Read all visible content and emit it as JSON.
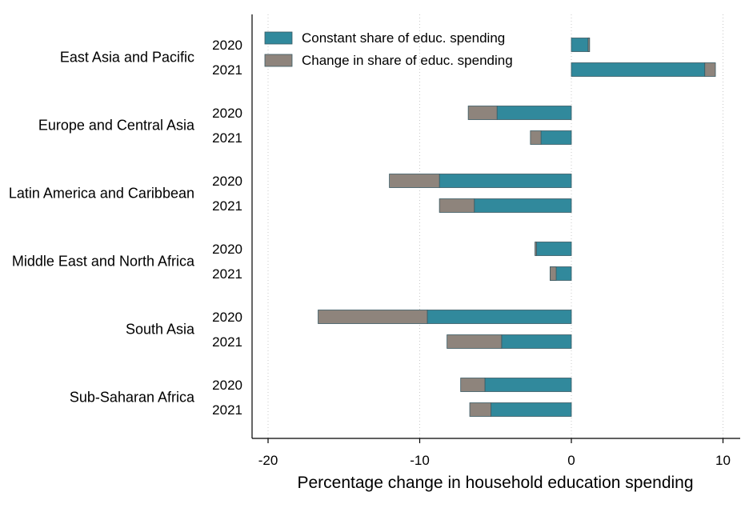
{
  "chart_data": {
    "type": "bar",
    "orientation": "horizontal",
    "stacked": true,
    "xlabel": "Percentage change in household education spending",
    "ylabel": "",
    "xlim": [
      -20,
      11
    ],
    "xticks": [
      -20,
      -10,
      0,
      10
    ],
    "grid": "vertical-dotted",
    "legend_position": "top",
    "series": [
      {
        "name": "Constant share of educ. spending",
        "color": "#31899c"
      },
      {
        "name": "Change in share of educ. spending",
        "color": "#8e847c"
      }
    ],
    "groups": [
      {
        "region": "East Asia and Pacific",
        "bars": [
          {
            "year": "2020",
            "constant": 1.2,
            "change": -0.1
          },
          {
            "year": "2021",
            "constant": 8.8,
            "change": 0.7
          }
        ]
      },
      {
        "region": "Europe and Central Asia",
        "bars": [
          {
            "year": "2020",
            "constant": -4.9,
            "change": -1.9
          },
          {
            "year": "2021",
            "constant": -2.0,
            "change": -0.7
          }
        ]
      },
      {
        "region": "Latin America and Caribbean",
        "bars": [
          {
            "year": "2020",
            "constant": -8.7,
            "change": -3.3
          },
          {
            "year": "2021",
            "constant": -6.4,
            "change": -2.3
          }
        ]
      },
      {
        "region": "Middle East and North Africa",
        "bars": [
          {
            "year": "2020",
            "constant": -2.3,
            "change": -0.1
          },
          {
            "year": "2021",
            "constant": -1.4,
            "change": 0.4
          }
        ]
      },
      {
        "region": "South Asia",
        "bars": [
          {
            "year": "2020",
            "constant": -9.5,
            "change": -7.2
          },
          {
            "year": "2021",
            "constant": -4.6,
            "change": -3.6
          }
        ]
      },
      {
        "region": "Sub-Saharan Africa",
        "bars": [
          {
            "year": "2020",
            "constant": -5.7,
            "change": -1.6
          },
          {
            "year": "2021",
            "constant": -5.3,
            "change": -1.4
          }
        ]
      }
    ]
  }
}
